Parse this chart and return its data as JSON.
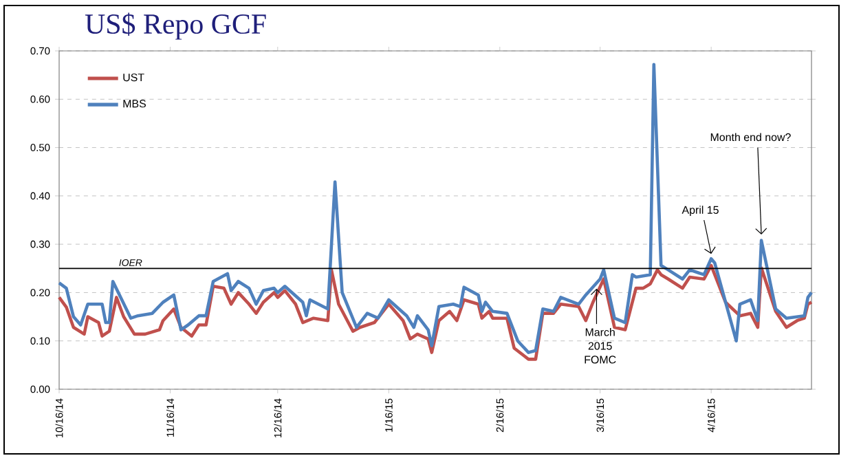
{
  "chart_data": {
    "type": "line",
    "title": "US$ Repo GCF",
    "xlim": [
      "2014-10-16",
      "2015-05-14"
    ],
    "xticks": [
      {
        "value": "2014-10-16",
        "label": "10/16/14"
      },
      {
        "value": "2014-11-16",
        "label": "11/16/14"
      },
      {
        "value": "2014-12-16",
        "label": "12/16/14"
      },
      {
        "value": "2015-01-16",
        "label": "1/16/15"
      },
      {
        "value": "2015-02-16",
        "label": "2/16/15"
      },
      {
        "value": "2015-03-16",
        "label": "3/16/15"
      },
      {
        "value": "2015-04-16",
        "label": "4/16/15"
      }
    ],
    "ylim": [
      0,
      0.7
    ],
    "yticks": [
      {
        "value": 0,
        "label": "0.00"
      },
      {
        "value": 0.1,
        "label": "0.10"
      },
      {
        "value": 0.2,
        "label": "0.20"
      },
      {
        "value": 0.3,
        "label": "0.30"
      },
      {
        "value": 0.4,
        "label": "0.40"
      },
      {
        "value": 0.5,
        "label": "0.50"
      },
      {
        "value": 0.6,
        "label": "0.60"
      },
      {
        "value": 0.7,
        "label": "0.70"
      }
    ],
    "grid": "y",
    "legend": "top left",
    "ref_lines": [
      {
        "axis": "y",
        "value": 0.25,
        "label": "IOER",
        "color": "#000000"
      }
    ],
    "annotations": [
      {
        "text": "March 2015 FOMC",
        "x": "2015-03-16",
        "y": 0.22
      },
      {
        "text": "April 15",
        "x": "2015-04-16",
        "y": 0.27
      },
      {
        "text": "Month end now?",
        "x": "2015-04-30",
        "y": 0.31
      }
    ],
    "series": [
      {
        "name": "UST",
        "color": "#c0504d",
        "x": [
          "2014-10-16",
          "2014-10-18",
          "2014-10-20",
          "2014-10-23",
          "2014-10-24",
          "2014-10-27",
          "2014-10-28",
          "2014-10-30",
          "2014-11-01",
          "2014-11-03",
          "2014-11-06",
          "2014-11-09",
          "2014-11-13",
          "2014-11-14",
          "2014-11-17",
          "2014-11-19",
          "2014-11-22",
          "2014-11-24",
          "2014-11-26",
          "2014-11-28",
          "2014-12-01",
          "2014-12-03",
          "2014-12-05",
          "2014-12-08",
          "2014-12-10",
          "2014-12-12",
          "2014-12-15",
          "2014-12-16",
          "2014-12-18",
          "2014-12-21",
          "2014-12-23",
          "2014-12-26",
          "2014-12-30",
          "2014-12-31",
          "2015-01-02",
          "2015-01-06",
          "2015-01-08",
          "2015-01-12",
          "2015-01-16",
          "2015-01-20",
          "2015-01-22",
          "2015-01-24",
          "2015-01-27",
          "2015-01-28",
          "2015-01-30",
          "2015-02-02",
          "2015-02-04",
          "2015-02-06",
          "2015-02-10",
          "2015-02-11",
          "2015-02-13",
          "2015-02-14",
          "2015-02-18",
          "2015-02-20",
          "2015-02-24",
          "2015-02-26",
          "2015-02-28",
          "2015-03-03",
          "2015-03-05",
          "2015-03-10",
          "2015-03-12",
          "2015-03-14",
          "2015-03-17",
          "2015-03-20",
          "2015-03-23",
          "2015-03-26",
          "2015-03-28",
          "2015-03-30",
          "2015-04-01",
          "2015-04-02",
          "2015-04-04",
          "2015-04-08",
          "2015-04-10",
          "2015-04-14",
          "2015-04-16",
          "2015-04-20",
          "2015-04-23",
          "2015-04-24",
          "2015-04-27",
          "2015-04-29",
          "2015-04-30",
          "2015-05-04",
          "2015-05-07",
          "2015-05-10",
          "2015-05-12",
          "2015-05-13",
          "2015-05-14"
        ],
        "values": [
          0.19,
          0.17,
          0.128,
          0.114,
          0.15,
          0.138,
          0.11,
          0.12,
          0.19,
          0.15,
          0.114,
          0.114,
          0.123,
          0.142,
          0.166,
          0.128,
          0.11,
          0.133,
          0.133,
          0.213,
          0.209,
          0.176,
          0.2,
          0.176,
          0.157,
          0.18,
          0.2,
          0.19,
          0.204,
          0.176,
          0.138,
          0.147,
          0.142,
          0.247,
          0.176,
          0.12,
          0.128,
          0.138,
          0.176,
          0.142,
          0.104,
          0.114,
          0.104,
          0.076,
          0.142,
          0.161,
          0.142,
          0.185,
          0.176,
          0.147,
          0.161,
          0.147,
          0.147,
          0.085,
          0.062,
          0.062,
          0.157,
          0.157,
          0.176,
          0.171,
          0.142,
          0.18,
          0.228,
          0.128,
          0.123,
          0.209,
          0.209,
          0.218,
          0.247,
          0.237,
          0.228,
          0.209,
          0.232,
          0.228,
          0.256,
          0.18,
          null,
          0.152,
          0.157,
          0.128,
          0.251,
          0.161,
          0.128,
          0.142,
          0.147,
          0.176,
          0.18
        ]
      },
      {
        "name": "MBS",
        "color": "#4f81bd",
        "x": [
          "2014-10-16",
          "2014-10-18",
          "2014-10-20",
          "2014-10-22",
          "2014-10-24",
          "2014-10-28",
          "2014-10-29",
          "2014-10-30",
          "2014-10-31",
          "2014-11-05",
          "2014-11-07",
          "2014-11-11",
          "2014-11-14",
          "2014-11-17",
          "2014-11-19",
          "2014-11-21",
          "2014-11-24",
          "2014-11-26",
          "2014-11-28",
          "2014-12-02",
          "2014-12-03",
          "2014-12-05",
          "2014-12-08",
          "2014-12-10",
          "2014-12-12",
          "2014-12-15",
          "2014-12-16",
          "2014-12-18",
          "2014-12-23",
          "2014-12-24",
          "2014-12-25",
          "2014-12-30",
          "2015-01-01",
          "2015-01-03",
          "2015-01-07",
          "2015-01-10",
          "2015-01-13",
          "2015-01-16",
          "2015-01-21",
          "2015-01-23",
          "2015-01-24",
          "2015-01-27",
          "2015-01-28",
          "2015-01-30",
          "2015-02-03",
          "2015-02-05",
          "2015-02-06",
          "2015-02-10",
          "2015-02-11",
          "2015-02-12",
          "2015-02-14",
          "2015-02-18",
          "2015-02-21",
          "2015-02-24",
          "2015-02-26",
          "2015-02-28",
          "2015-03-03",
          "2015-03-05",
          "2015-03-10",
          "2015-03-12",
          "2015-03-16",
          "2015-03-17",
          "2015-03-20",
          "2015-03-23",
          "2015-03-25",
          "2015-03-26",
          "2015-03-30",
          "2015-03-31",
          "2015-04-02",
          "2015-04-04",
          "2015-04-08",
          "2015-04-10",
          "2015-04-14",
          "2015-04-16",
          "2015-04-17",
          "2015-04-23",
          "2015-04-24",
          "2015-04-27",
          "2015-04-29",
          "2015-04-30",
          "2015-05-04",
          "2015-05-07",
          "2015-05-12",
          "2015-05-13",
          "2015-05-14"
        ],
        "values": [
          0.22,
          0.209,
          0.15,
          0.133,
          0.176,
          0.176,
          0.138,
          0.138,
          0.223,
          0.147,
          0.152,
          0.157,
          0.18,
          0.195,
          0.123,
          0.133,
          0.152,
          0.152,
          0.223,
          0.239,
          0.204,
          0.223,
          0.209,
          0.176,
          0.204,
          0.209,
          0.2,
          0.213,
          0.18,
          0.152,
          0.185,
          0.166,
          0.429,
          0.2,
          0.128,
          0.157,
          0.147,
          0.185,
          0.152,
          0.128,
          0.152,
          0.123,
          0.09,
          0.171,
          0.176,
          0.171,
          0.211,
          0.195,
          0.161,
          0.18,
          0.161,
          0.157,
          0.1,
          0.076,
          0.08,
          0.166,
          0.161,
          0.19,
          0.176,
          0.195,
          0.228,
          0.247,
          0.147,
          0.138,
          0.237,
          0.232,
          0.237,
          0.672,
          0.256,
          0.247,
          0.228,
          0.247,
          0.237,
          0.27,
          0.261,
          0.1,
          0.176,
          0.185,
          0.142,
          0.308,
          0.166,
          0.147,
          0.152,
          0.19,
          0.2
        ]
      }
    ]
  }
}
